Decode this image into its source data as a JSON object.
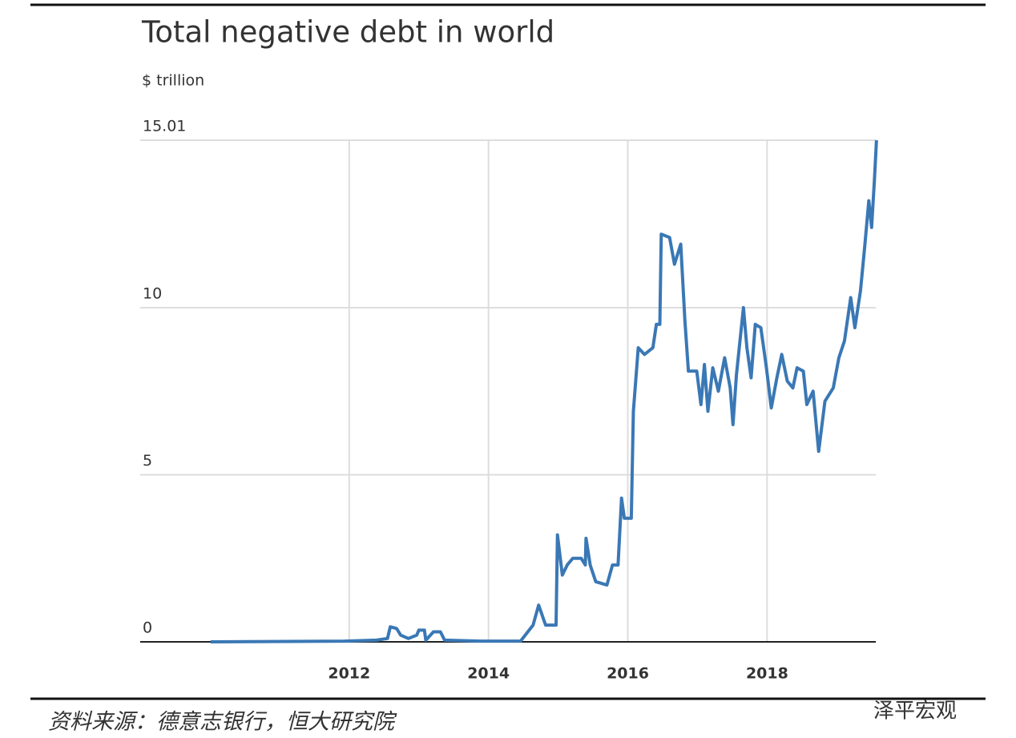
{
  "chart_data": {
    "type": "line",
    "title": "Total negative debt in world",
    "subtitle": "$ trillion",
    "x": [
      2010.01,
      2011.93,
      2012.39,
      2012.55,
      2012.59,
      2012.68,
      2012.74,
      2012.85,
      2012.97,
      2013.0,
      2013.08,
      2013.1,
      2013.21,
      2013.31,
      2013.37,
      2013.89,
      2014.46,
      2014.64,
      2014.72,
      2014.82,
      2014.97,
      2014.99,
      2015.06,
      2015.13,
      2015.21,
      2015.33,
      2015.39,
      2015.4,
      2015.46,
      2015.54,
      2015.7,
      2015.78,
      2015.86,
      2015.91,
      2015.95,
      2016.05,
      2016.08,
      2016.15,
      2016.24,
      2016.36,
      2016.41,
      2016.46,
      2016.48,
      2016.6,
      2016.67,
      2016.76,
      2016.82,
      2016.87,
      2016.99,
      2017.05,
      2017.1,
      2017.15,
      2017.22,
      2017.3,
      2017.39,
      2017.47,
      2017.51,
      2017.56,
      2017.66,
      2017.71,
      2017.77,
      2017.83,
      2017.91,
      2017.99,
      2018.06,
      2018.14,
      2018.21,
      2018.29,
      2018.37,
      2018.43,
      2018.52,
      2018.57,
      2018.66,
      2018.74,
      2018.83,
      2018.95,
      2019.03,
      2019.11,
      2019.2,
      2019.26,
      2019.34,
      2019.4,
      2019.46,
      2019.5,
      2019.54,
      2019.57
    ],
    "series": [
      {
        "color": "#3a78b5",
        "values": [
          0,
          0.02,
          0.05,
          0.1,
          0.45,
          0.4,
          0.2,
          0.1,
          0.2,
          0.35,
          0.35,
          0.05,
          0.3,
          0.3,
          0.05,
          0.02,
          0.02,
          0.5,
          1.1,
          0.5,
          0.5,
          3.2,
          2.0,
          2.3,
          2.5,
          2.5,
          2.3,
          3.1,
          2.3,
          1.8,
          1.7,
          2.3,
          2.3,
          4.3,
          3.7,
          3.7,
          6.9,
          8.8,
          8.6,
          8.8,
          9.5,
          9.5,
          12.2,
          12.1,
          11.3,
          11.9,
          9.6,
          8.1,
          8.1,
          7.1,
          8.3,
          6.9,
          8.2,
          7.5,
          8.5,
          7.6,
          6.5,
          8.0,
          10.0,
          8.8,
          7.9,
          9.5,
          9.4,
          8.2,
          7.0,
          7.9,
          8.6,
          7.8,
          7.6,
          8.2,
          8.1,
          7.1,
          7.5,
          5.7,
          7.2,
          7.6,
          8.5,
          9.0,
          10.3,
          9.4,
          10.5,
          11.8,
          13.2,
          12.4,
          13.8,
          15.01
        ]
      }
    ],
    "xlim": [
      2009.0,
      2019.56
    ],
    "xticks": [
      2012,
      2014,
      2016,
      2018
    ],
    "ylim": [
      0,
      15.01
    ],
    "yticks": [
      0,
      5,
      10,
      15.01
    ],
    "grid": true
  },
  "source": "资料来源：德意志银行，恒大研究院",
  "watermark": "泽平宏观"
}
